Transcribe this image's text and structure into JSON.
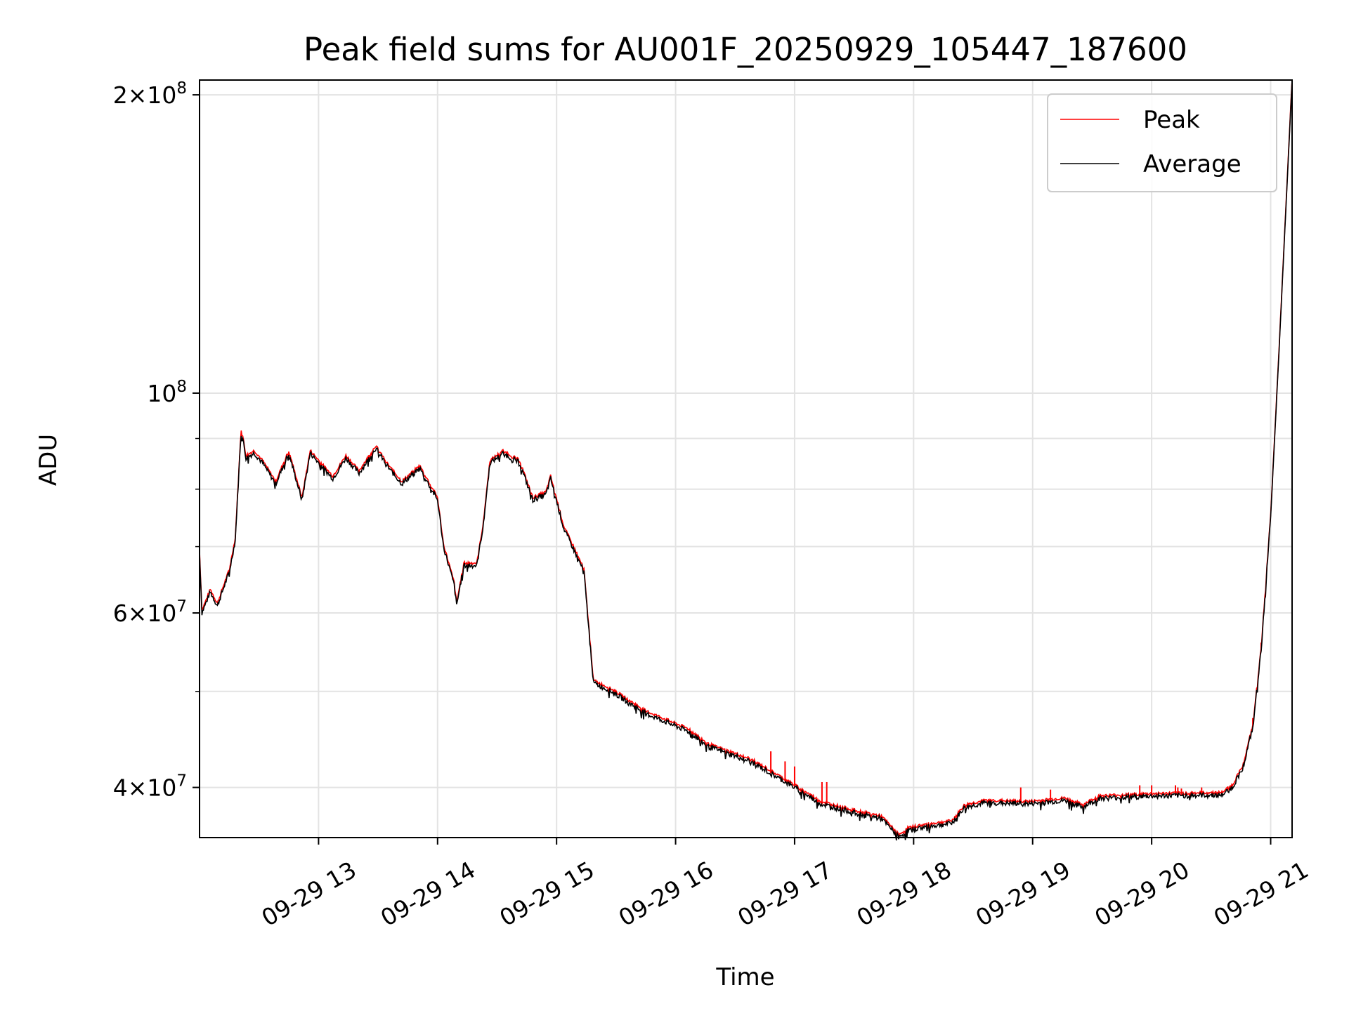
{
  "chart_data": {
    "type": "line",
    "title": "Peak field sums for AU001F_20250929_105447_187600",
    "xlabel": "Time",
    "ylabel": "ADU",
    "yscale": "log",
    "xlim_hours": [
      12.0,
      21.18
    ],
    "ylim": [
      35600000,
      207000000
    ],
    "grid": true,
    "legend": {
      "placement": "top-right",
      "entries": [
        "Peak",
        "Average"
      ]
    },
    "x_ticks": [
      {
        "value": 13,
        "label": "09-29 13"
      },
      {
        "value": 14,
        "label": "09-29 14"
      },
      {
        "value": 15,
        "label": "09-29 15"
      },
      {
        "value": 16,
        "label": "09-29 16"
      },
      {
        "value": 17,
        "label": "09-29 17"
      },
      {
        "value": 18,
        "label": "09-29 18"
      },
      {
        "value": 19,
        "label": "09-29 19"
      },
      {
        "value": 20,
        "label": "09-29 20"
      },
      {
        "value": 21,
        "label": "09-29 21"
      }
    ],
    "y_ticks": [
      {
        "value": 200000000,
        "mant": "2",
        "label": "2×10^8",
        "exp": "8"
      },
      {
        "value": 100000000,
        "mant": "",
        "label": "10^8",
        "exp": "8"
      },
      {
        "value": 60000000,
        "mant": "6",
        "label": "6×10^7",
        "exp": "7"
      },
      {
        "value": 40000000,
        "mant": "4",
        "label": "4×10^7",
        "exp": "7"
      }
    ],
    "y_minor": [
      50000000,
      70000000,
      80000000,
      90000000
    ],
    "series": [
      {
        "name": "Average",
        "color": "#000000",
        "x": [
          12.0,
          12.02,
          12.09,
          12.15,
          12.21,
          12.25,
          12.3,
          12.35,
          12.39,
          12.46,
          12.53,
          12.64,
          12.75,
          12.86,
          12.93,
          13.04,
          13.12,
          13.23,
          13.34,
          13.48,
          13.59,
          13.7,
          13.85,
          14.0,
          14.05,
          14.14,
          14.16,
          14.22,
          14.33,
          14.38,
          14.44,
          14.55,
          14.69,
          14.8,
          14.91,
          14.95,
          15.06,
          15.17,
          15.23,
          15.31,
          15.46,
          15.75,
          16.12,
          16.27,
          16.63,
          17.0,
          17.22,
          17.51,
          17.73,
          17.88,
          17.95,
          18.1,
          18.32,
          18.43,
          18.61,
          18.98,
          19.27,
          19.42,
          19.56,
          20.0,
          20.59,
          20.68,
          20.77,
          20.85,
          20.92,
          21.0,
          21.07,
          21.18
        ],
        "values": [
          69000000,
          60000000,
          63000000,
          61000000,
          64000000,
          66000000,
          71000000,
          92000000,
          86000000,
          87000000,
          85000000,
          81000000,
          87000000,
          78000000,
          87000000,
          84000000,
          82000000,
          86000000,
          83000000,
          88000000,
          84000000,
          81000000,
          84000000,
          78000000,
          70000000,
          64000000,
          61000000,
          67000000,
          67000000,
          73000000,
          85000000,
          87000000,
          85000000,
          78000000,
          79000000,
          82000000,
          73000000,
          68500000,
          66000000,
          51000000,
          50000000,
          47500000,
          45500000,
          44000000,
          42500000,
          40000000,
          38500000,
          37700000,
          37200000,
          35600000,
          36200000,
          36500000,
          36800000,
          38200000,
          38600000,
          38500000,
          38800000,
          38200000,
          39000000,
          39200000,
          39300000,
          40000000,
          42000000,
          46000000,
          55000000,
          75000000,
          110000000,
          207000000
        ]
      },
      {
        "name": "Peak",
        "color": "#ff0000",
        "spikes": [
          {
            "x": 16.8,
            "v": 43500000
          },
          {
            "x": 16.92,
            "v": 42500000
          },
          {
            "x": 17.0,
            "v": 42000000
          },
          {
            "x": 17.23,
            "v": 40500000
          },
          {
            "x": 17.27,
            "v": 40500000
          },
          {
            "x": 18.9,
            "v": 40000000
          },
          {
            "x": 19.15,
            "v": 39800000
          },
          {
            "x": 19.9,
            "v": 40200000
          },
          {
            "x": 20.0,
            "v": 40200000
          },
          {
            "x": 20.2,
            "v": 40200000
          },
          {
            "x": 20.22,
            "v": 40000000
          },
          {
            "x": 20.25,
            "v": 39900000
          },
          {
            "x": 20.42,
            "v": 40000000
          },
          {
            "x": 20.64,
            "v": 40100000
          },
          {
            "x": 20.85,
            "v": 47000000
          },
          {
            "x": 20.92,
            "v": 56000000
          }
        ]
      }
    ]
  }
}
